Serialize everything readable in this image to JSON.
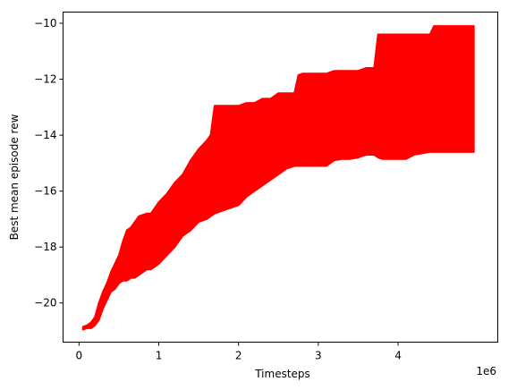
{
  "chart_data": {
    "type": "area",
    "title": "",
    "xlabel": "Timesteps",
    "ylabel": "Best mean episode rew",
    "x_offset_label": "1e6",
    "xlim": [
      -0.2,
      5.25
    ],
    "ylim": [
      -21.4,
      -9.6
    ],
    "x_ticks": [
      0,
      1,
      2,
      3,
      4
    ],
    "x_tick_labels": [
      "0",
      "1",
      "2",
      "3",
      "4"
    ],
    "y_ticks": [
      -20,
      -18,
      -16,
      -14,
      -12,
      -10
    ],
    "y_tick_labels": [
      "−20",
      "−18",
      "−16",
      "−14",
      "−12",
      "−10"
    ],
    "grid": false,
    "legend": "none",
    "fill_color": "#ff0000",
    "series": [
      {
        "x": [
          0.05,
          0.1,
          0.15,
          0.2,
          0.25,
          0.3,
          0.35,
          0.4,
          0.45,
          0.5,
          0.55,
          0.6,
          0.65,
          0.7,
          0.75,
          0.8,
          0.85,
          0.9,
          0.95,
          1.0,
          1.1,
          1.2,
          1.3,
          1.4,
          1.5,
          1.6,
          1.65,
          1.7,
          1.8,
          1.9,
          2.0,
          2.1,
          2.2,
          2.3,
          2.4,
          2.5,
          2.6,
          2.7,
          2.75,
          2.8,
          2.9,
          3.0,
          3.1,
          3.2,
          3.3,
          3.4,
          3.5,
          3.6,
          3.7,
          3.75,
          3.8,
          3.9,
          4.0,
          4.1,
          4.2,
          4.3,
          4.4,
          4.45,
          4.5,
          4.6,
          4.7,
          4.8,
          4.95
        ],
        "upper": [
          -20.85,
          -20.8,
          -20.7,
          -20.5,
          -20.0,
          -19.6,
          -19.3,
          -18.9,
          -18.6,
          -18.3,
          -17.8,
          -17.4,
          -17.3,
          -17.1,
          -16.9,
          -16.85,
          -16.8,
          -16.8,
          -16.6,
          -16.4,
          -16.1,
          -15.7,
          -15.4,
          -14.9,
          -14.5,
          -14.2,
          -14.0,
          -12.95,
          -12.95,
          -12.95,
          -12.95,
          -12.85,
          -12.85,
          -12.7,
          -12.7,
          -12.5,
          -12.5,
          -12.5,
          -11.85,
          -11.8,
          -11.8,
          -11.8,
          -11.8,
          -11.7,
          -11.7,
          -11.7,
          -11.7,
          -11.6,
          -11.6,
          -10.4,
          -10.4,
          -10.4,
          -10.4,
          -10.4,
          -10.4,
          -10.4,
          -10.4,
          -10.1,
          -10.1,
          -10.1,
          -10.1,
          -10.1,
          -10.1
        ],
        "lower": [
          -20.95,
          -20.9,
          -20.9,
          -20.8,
          -20.6,
          -20.2,
          -19.9,
          -19.6,
          -19.5,
          -19.3,
          -19.2,
          -19.2,
          -19.1,
          -19.1,
          -19.0,
          -18.9,
          -18.8,
          -18.8,
          -18.7,
          -18.6,
          -18.3,
          -18.0,
          -17.6,
          -17.4,
          -17.1,
          -17.0,
          -16.9,
          -16.8,
          -16.7,
          -16.6,
          -16.5,
          -16.2,
          -16.0,
          -15.8,
          -15.6,
          -15.4,
          -15.2,
          -15.1,
          -15.1,
          -15.1,
          -15.1,
          -15.1,
          -15.1,
          -14.9,
          -14.85,
          -14.85,
          -14.8,
          -14.7,
          -14.7,
          -14.8,
          -14.85,
          -14.85,
          -14.85,
          -14.85,
          -14.7,
          -14.65,
          -14.6,
          -14.6,
          -14.6,
          -14.6,
          -14.6,
          -14.6,
          -14.6
        ]
      }
    ]
  }
}
